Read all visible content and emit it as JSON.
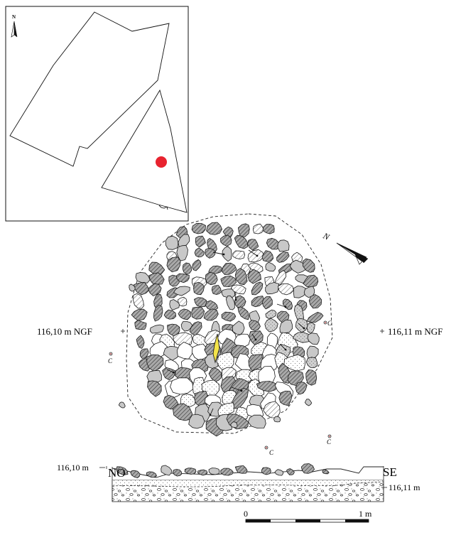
{
  "inset": {
    "north_label": "N",
    "site_marker_color": "#e8232f"
  },
  "plan": {
    "elevation_left": "116,10 m NGF",
    "elevation_right": "116,11 m NGF",
    "north_arrow_label": "N",
    "stone_fill_dark": "#8c8c8c",
    "stone_fill_light": "#ffffff",
    "highlight_fill": "#f4e44a",
    "c_marks": [
      "C",
      "C",
      "C",
      "C"
    ]
  },
  "section": {
    "left_direction": "NO",
    "right_direction": "SE",
    "left_elevation": "116,10 m",
    "right_elevation": "116,11 m"
  },
  "scale_bar": {
    "start_label": "0",
    "end_label": "1 m"
  }
}
